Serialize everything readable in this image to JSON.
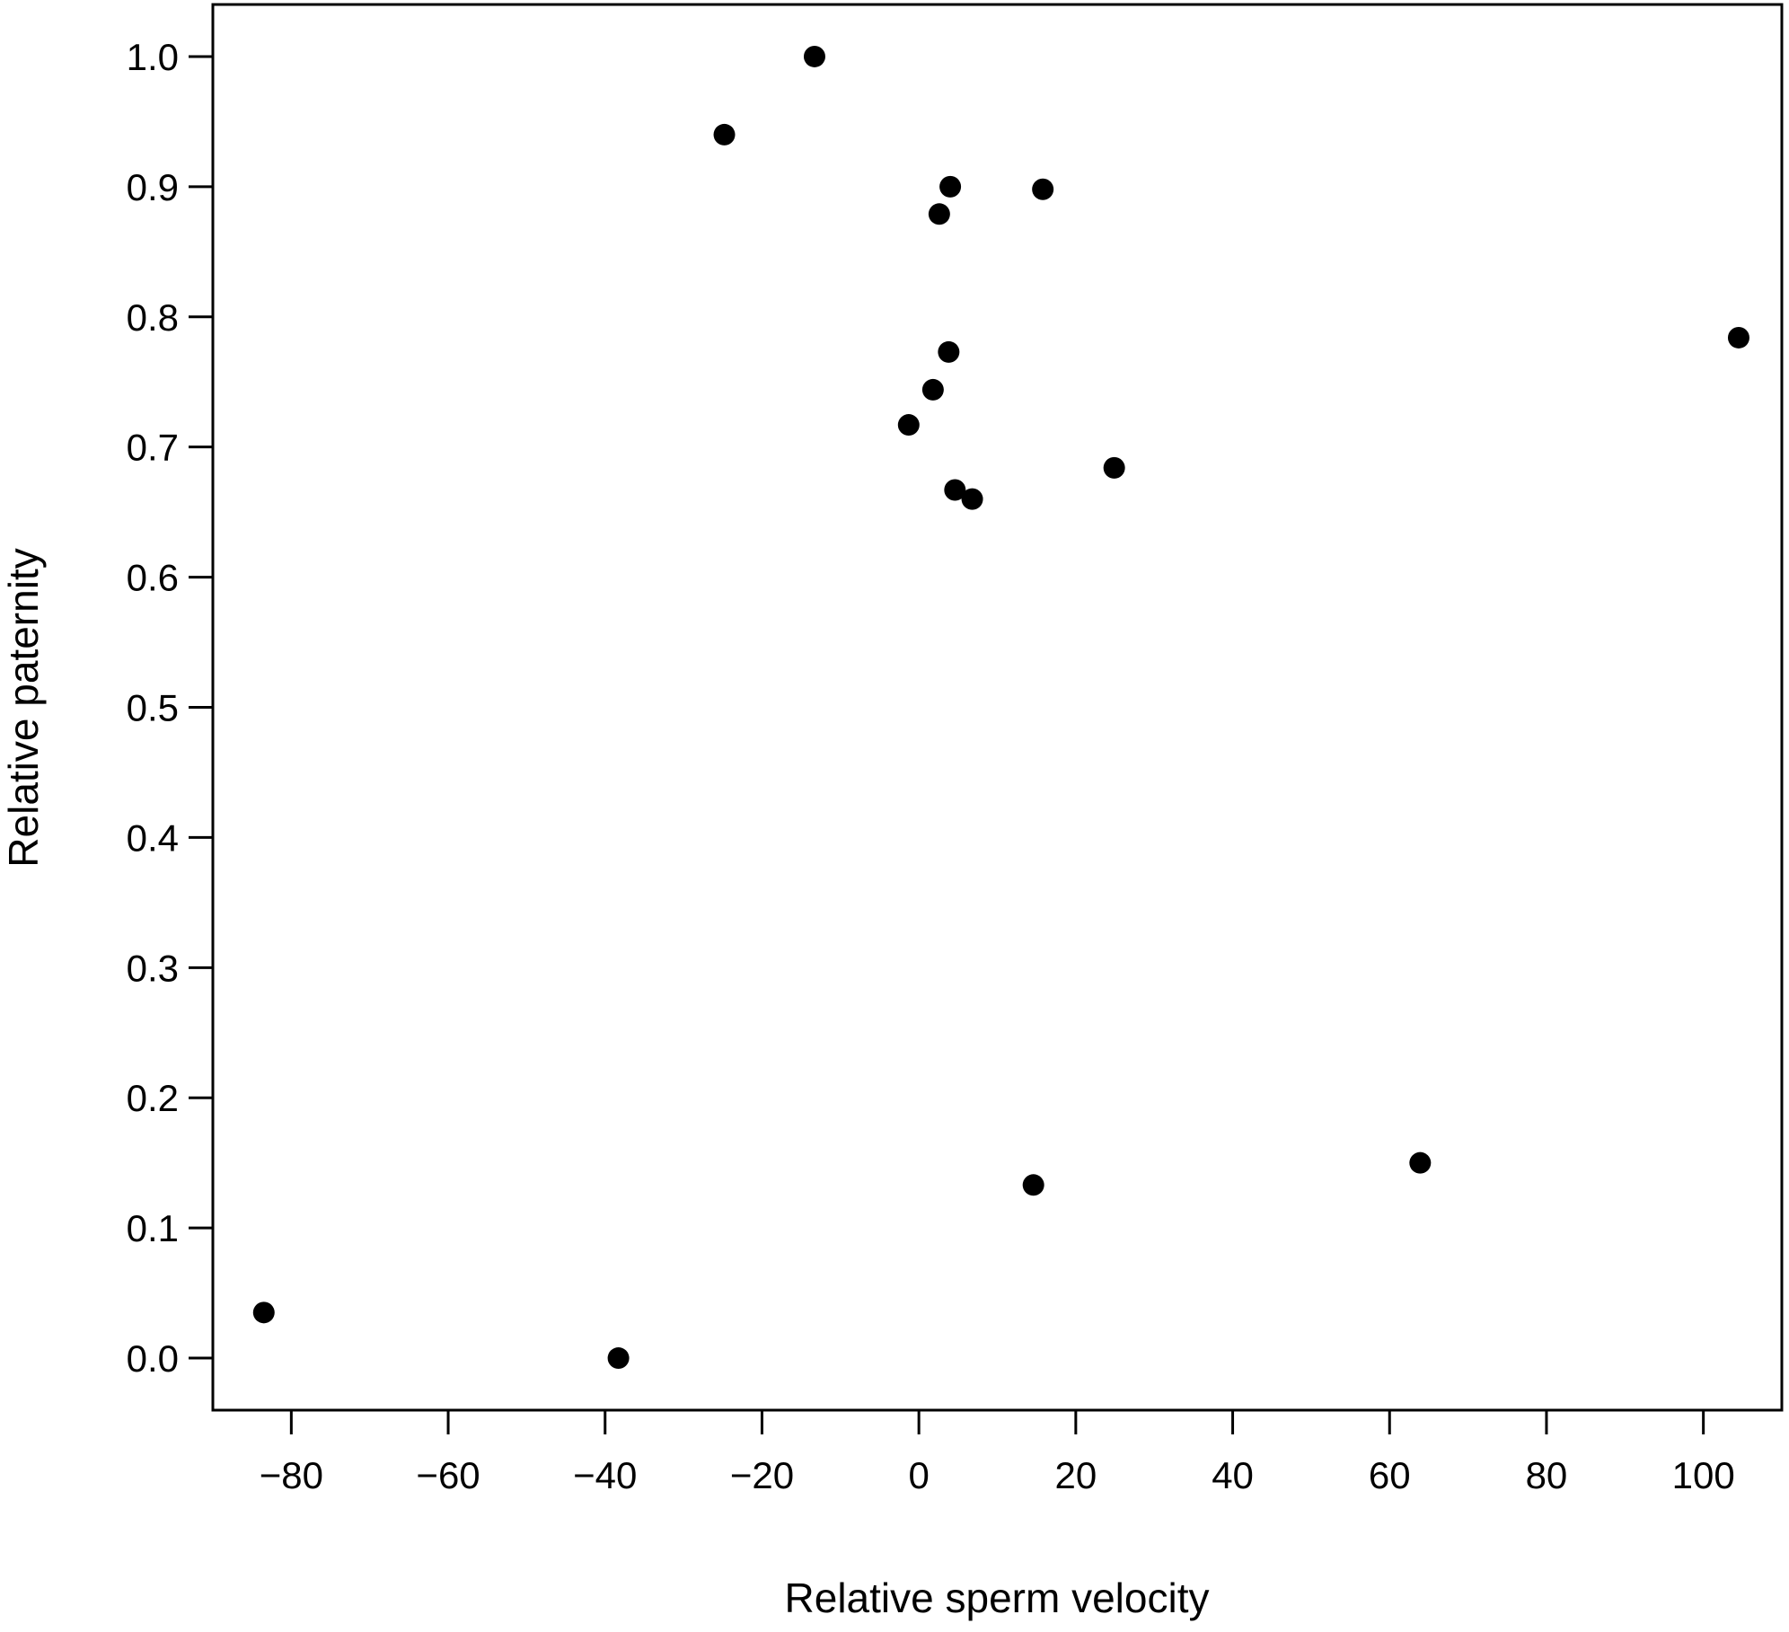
{
  "chart_data": {
    "type": "scatter",
    "title": "",
    "xlabel": "Relative sperm velocity",
    "ylabel": "Relative paternity",
    "xlim": [
      -90,
      110
    ],
    "ylim": [
      -0.04,
      1.04
    ],
    "x_ticks": [
      -80,
      -60,
      -40,
      -20,
      0,
      20,
      40,
      60,
      80,
      100
    ],
    "x_tick_labels": [
      "−80",
      "−60",
      "−40",
      "−20",
      "0",
      "20",
      "40",
      "60",
      "80",
      "100"
    ],
    "y_ticks": [
      0.0,
      0.1,
      0.2,
      0.3,
      0.4,
      0.5,
      0.6,
      0.7,
      0.8,
      0.9,
      1.0
    ],
    "y_tick_labels": [
      "0.0",
      "0.1",
      "0.2",
      "0.3",
      "0.4",
      "0.5",
      "0.6",
      "0.7",
      "0.8",
      "0.9",
      "1.0"
    ],
    "grid": false,
    "legend": "none",
    "marker_color": "#000000",
    "points": [
      {
        "x": -83.5,
        "y": 0.035
      },
      {
        "x": -38.3,
        "y": 0.0
      },
      {
        "x": -24.8,
        "y": 0.94
      },
      {
        "x": -13.3,
        "y": 1.0
      },
      {
        "x": 2.6,
        "y": 0.879
      },
      {
        "x": 4.0,
        "y": 0.9
      },
      {
        "x": 15.8,
        "y": 0.898
      },
      {
        "x": 3.8,
        "y": 0.773
      },
      {
        "x": 1.8,
        "y": 0.744
      },
      {
        "x": -1.3,
        "y": 0.717
      },
      {
        "x": 4.6,
        "y": 0.667
      },
      {
        "x": 6.8,
        "y": 0.66
      },
      {
        "x": 24.9,
        "y": 0.684
      },
      {
        "x": 104.5,
        "y": 0.784
      },
      {
        "x": 14.6,
        "y": 0.133
      },
      {
        "x": 63.9,
        "y": 0.15
      }
    ]
  }
}
